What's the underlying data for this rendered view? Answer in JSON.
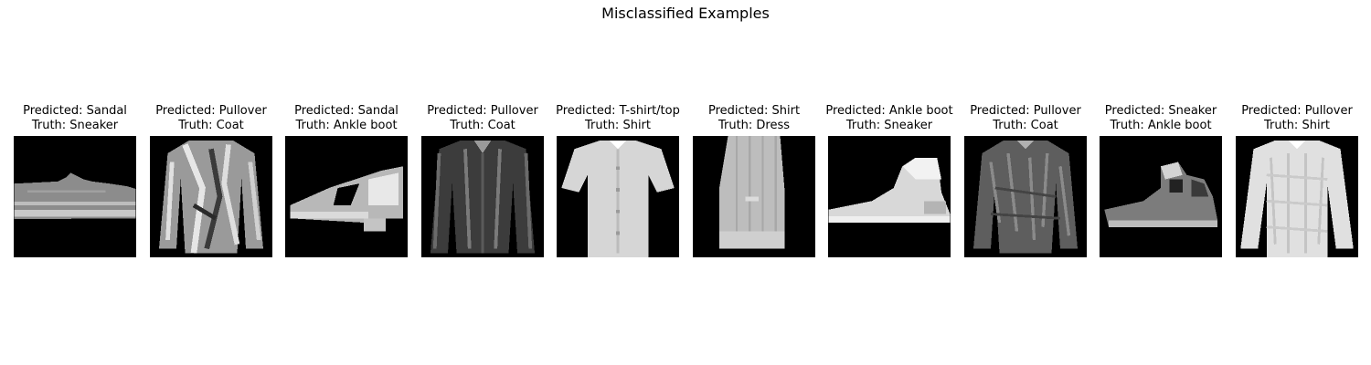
{
  "figure": {
    "title": "Misclassified Examples"
  },
  "examples": [
    {
      "predicted": "Predicted: Sandal",
      "truth": "Truth: Sneaker",
      "item": "sneaker",
      "icon": "sneaker-image"
    },
    {
      "predicted": "Predicted: Pullover",
      "truth": "Truth: Coat",
      "item": "coat",
      "icon": "coat-image"
    },
    {
      "predicted": "Predicted: Sandal",
      "truth": "Truth: Ankle boot",
      "item": "ankle-boot",
      "icon": "ankle-boot-image"
    },
    {
      "predicted": "Predicted: Pullover",
      "truth": "Truth: Coat",
      "item": "coat",
      "icon": "coat-image"
    },
    {
      "predicted": "Predicted: T-shirt/top",
      "truth": "Truth: Shirt",
      "item": "shirt",
      "icon": "shirt-image"
    },
    {
      "predicted": "Predicted: Shirt",
      "truth": "Truth: Dress",
      "item": "dress",
      "icon": "dress-image"
    },
    {
      "predicted": "Predicted: Ankle boot",
      "truth": "Truth: Sneaker",
      "item": "sneaker",
      "icon": "sneaker-image"
    },
    {
      "predicted": "Predicted: Pullover",
      "truth": "Truth: Coat",
      "item": "coat",
      "icon": "coat-image"
    },
    {
      "predicted": "Predicted: Sneaker",
      "truth": "Truth: Ankle boot",
      "item": "ankle-boot",
      "icon": "ankle-boot-image"
    },
    {
      "predicted": "Predicted: Pullover",
      "truth": "Truth: Shirt",
      "item": "shirt",
      "icon": "shirt-image"
    }
  ]
}
